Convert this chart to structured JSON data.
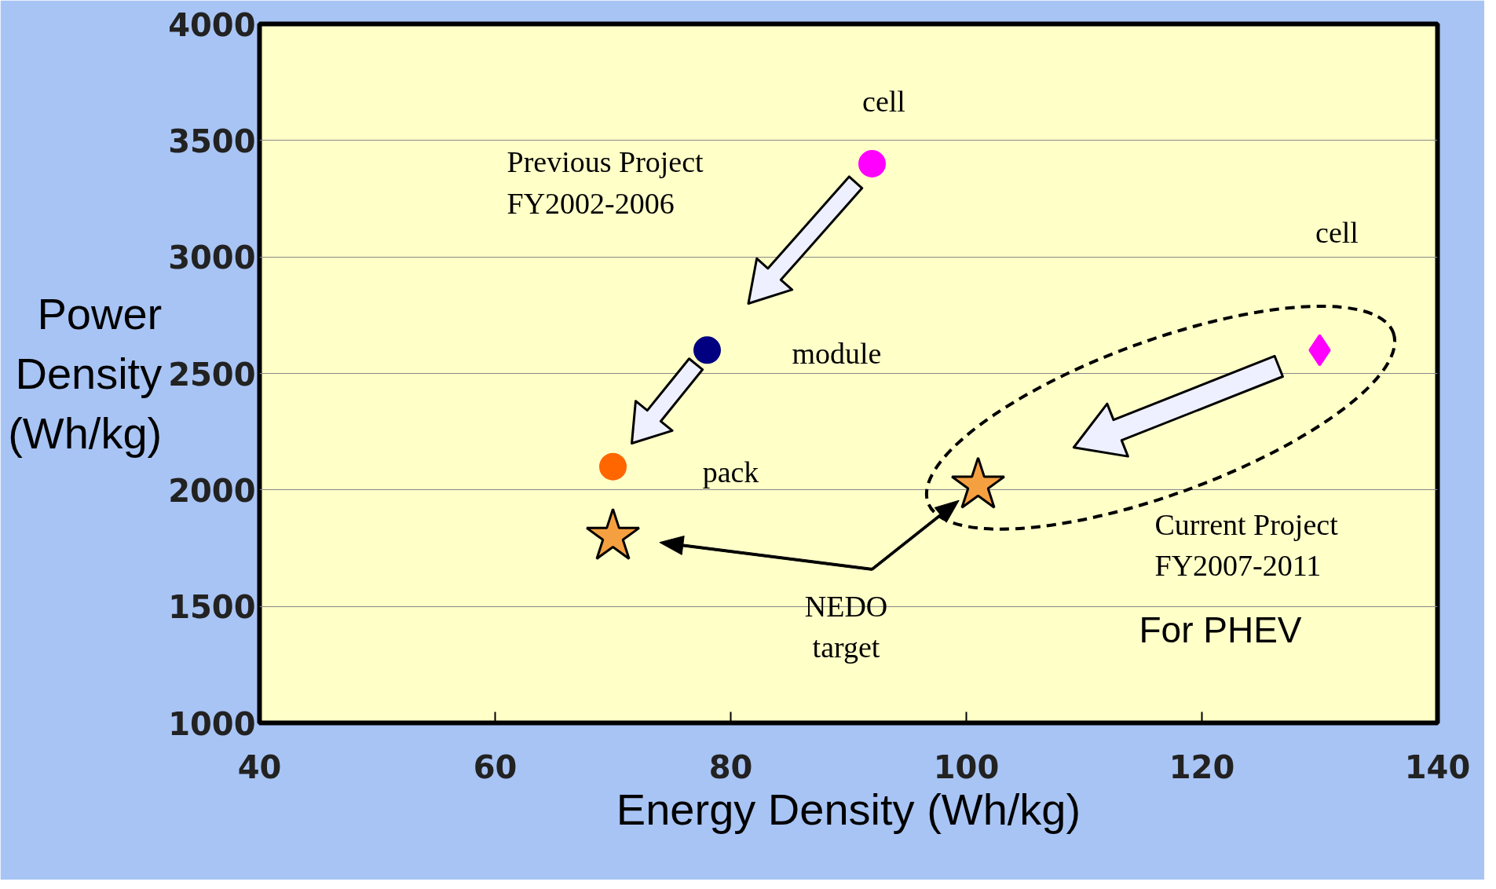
{
  "chart_data": {
    "type": "scatter",
    "xlabel": "Energy Density (Wh/kg)",
    "ylabel": "Power Density (Wh/kg)",
    "xlim": [
      40,
      140
    ],
    "xticks": [
      40,
      60,
      80,
      100,
      120,
      140
    ],
    "ylim": [
      1000,
      4000
    ],
    "yticks": [
      1000,
      1500,
      2000,
      2500,
      3000,
      3500,
      4000
    ],
    "grid": "y",
    "series": [
      {
        "color": "#ff00ff",
        "marker": "circle",
        "x": [
          92
        ],
        "values": [
          3400
        ]
      },
      {
        "color": "#000080",
        "marker": "circle",
        "x": [
          78
        ],
        "values": [
          2600
        ]
      },
      {
        "color": "#ff6600",
        "marker": "circle",
        "x": [
          70
        ],
        "values": [
          2100
        ]
      },
      {
        "color": "#ff00ff",
        "marker": "diamond",
        "x": [
          130
        ],
        "values": [
          2600
        ]
      },
      {
        "color": "#f5a040",
        "marker": "star",
        "x": [
          70,
          101
        ],
        "values": [
          1800,
          2020
        ]
      }
    ],
    "annotations": [
      "cell",
      "Previous Project\nFY2002-2006",
      "module",
      "pack",
      "cell",
      "Current Project\nFY2007-2011",
      "NEDO\ntarget",
      "For PHEV"
    ]
  }
}
